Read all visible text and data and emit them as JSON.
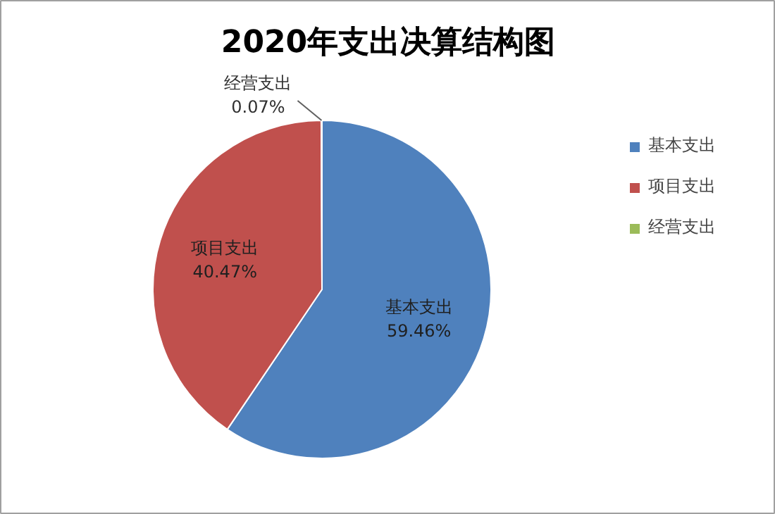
{
  "chart_data": {
    "type": "pie",
    "title": "2020年支出决算结构图",
    "categories": [
      "基本支出",
      "项目支出",
      "经营支出"
    ],
    "values": [
      59.46,
      40.47,
      0.07
    ],
    "colors": [
      "#4f81bd",
      "#c0504d",
      "#9bbb59"
    ],
    "value_labels": [
      "59.46%",
      "40.47%",
      "0.07%"
    ],
    "legend": "right"
  }
}
